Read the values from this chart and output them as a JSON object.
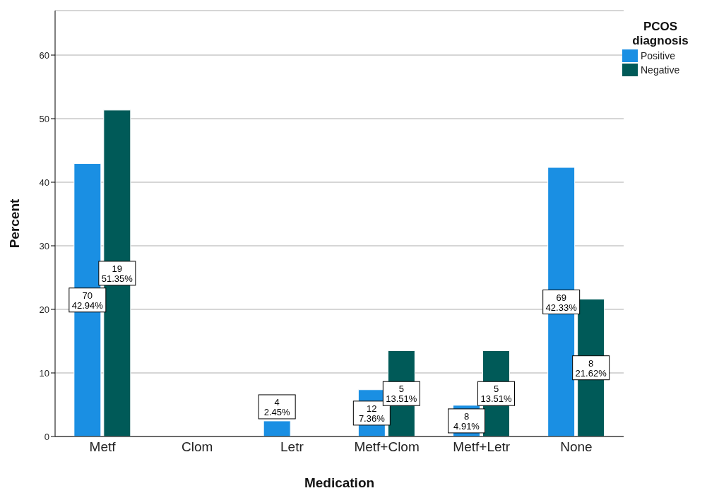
{
  "chart_data": {
    "type": "bar",
    "xlabel": "Medication",
    "ylabel": "Percent",
    "legend_title": "PCOS diagnosis",
    "categories": [
      "Metf",
      "Clom",
      "Letr",
      "Metf+Clom",
      "Metf+Letr",
      "None"
    ],
    "series": [
      {
        "name": "Positive",
        "color": "#1a8fe3",
        "values": [
          42.94,
          null,
          2.45,
          7.36,
          4.91,
          42.33
        ],
        "value_labels": [
          "70\n42.94%",
          null,
          "4\n2.45%",
          "12\n7.36%",
          "8\n4.91%",
          "69\n42.33%"
        ]
      },
      {
        "name": "Negative",
        "color": "#005a58",
        "values": [
          51.35,
          null,
          null,
          13.51,
          13.51,
          21.62
        ],
        "value_labels": [
          "19\n51.35%",
          null,
          null,
          "5\n13.51%",
          "5\n13.51%",
          "8\n21.62%"
        ]
      }
    ],
    "ylim": [
      0,
      67
    ],
    "yticks": [
      0,
      10,
      20,
      30,
      40,
      50,
      60
    ],
    "grid": "y",
    "legend": "top right"
  }
}
